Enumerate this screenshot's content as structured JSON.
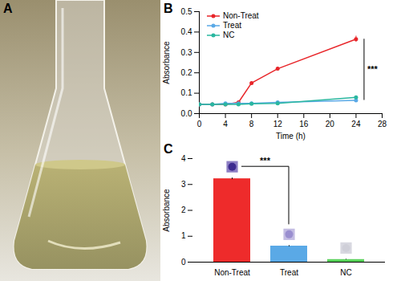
{
  "chart_data": [
    {
      "type": "photo",
      "title": "A"
    },
    {
      "type": "line",
      "title": "B",
      "x_label": "Time (h)",
      "y_label": "Absorbance",
      "x": [
        0,
        2,
        4,
        6,
        8,
        12,
        24
      ],
      "series": [
        {
          "name": "Non-Treat",
          "color": "#e8262a",
          "values": [
            0.045,
            0.045,
            0.045,
            0.055,
            0.15,
            0.22,
            0.365
          ],
          "errors": [
            0.003,
            0.003,
            0.003,
            0.003,
            0.004,
            0.008,
            0.015
          ]
        },
        {
          "name": "Treat",
          "color": "#5aa9e6",
          "values": [
            0.045,
            0.045,
            0.05,
            0.05,
            0.05,
            0.055,
            0.065
          ],
          "errors": [
            0.002,
            0.002,
            0.002,
            0.002,
            0.002,
            0.003,
            0.004
          ]
        },
        {
          "name": "NC",
          "color": "#2ab7a0",
          "values": [
            0.045,
            0.045,
            0.045,
            0.045,
            0.048,
            0.05,
            0.08
          ],
          "errors": [
            0.002,
            0.002,
            0.002,
            0.002,
            0.002,
            0.003,
            0.005
          ]
        }
      ],
      "xlim": [
        0,
        28
      ],
      "xticks": [
        0,
        4,
        8,
        12,
        16,
        20,
        24,
        28
      ],
      "ylim": [
        0,
        0.5
      ],
      "yticks": [
        {
          "value": 0,
          "label": "0.0"
        },
        0.1,
        0.2,
        0.3,
        0.4,
        0.5
      ],
      "legend": "top-left",
      "marker": "circle",
      "annotations": [
        {
          "text": "***"
        }
      ]
    },
    {
      "type": "bar",
      "title": "C",
      "y_label": "Absorbance",
      "categories": [
        "Non-Treat",
        "Treat",
        "NC"
      ],
      "values": [
        3.22,
        0.62,
        0.1
      ],
      "errors": [
        0.03,
        0.02,
        0.01
      ],
      "colors": [
        "#ee2b2b",
        "#5aa9e6",
        "#58d35a"
      ],
      "ylim": [
        0,
        4
      ],
      "yticks": [
        0,
        1,
        2,
        3,
        4
      ],
      "annotations": [
        {
          "text": "***"
        }
      ]
    }
  ]
}
